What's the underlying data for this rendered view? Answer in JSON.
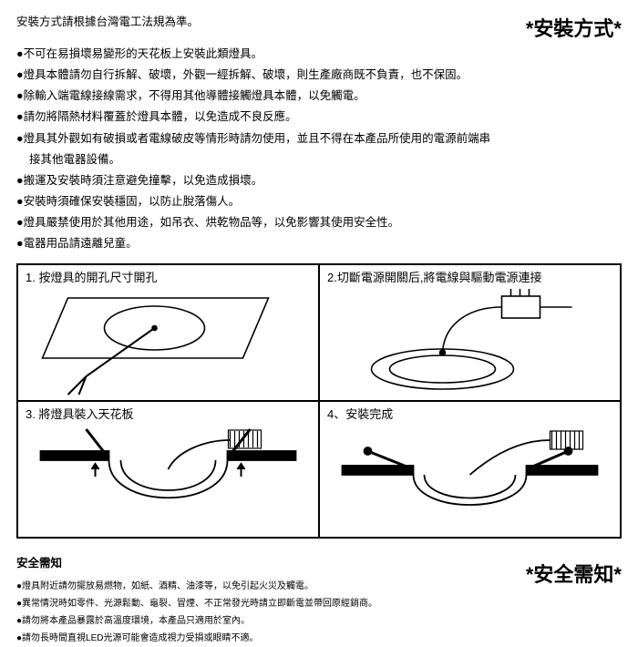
{
  "colors": {
    "text": "#000000",
    "bg": "#ffffff",
    "line": "#000000"
  },
  "header": {
    "intro": "安裝方式請根據台灣電工法規為準。",
    "title": "*安裝方式*"
  },
  "install_bullets": [
    "不可在易損壞易變形的天花板上安裝此類燈具。",
    "燈具本體請勿自行拆解、破壞，外觀一經拆解、破壞，則生產廠商既不負責，也不保固。",
    "除輸入端電線接線需求，不得用其他導體接觸燈具本體，以免觸電。",
    "請勿將隔熱材料覆蓋於燈具本體，以免造成不良反應。",
    "燈具其外觀如有破損或者電線破皮等情形時請勿使用，並且不得在本產品所使用的電源前端串",
    "接其他電器設備。",
    "搬運及安裝時須注意避免撞擊，以免造成損壞。",
    "安裝時須確保安裝穩固，以防止脫落傷人。",
    "燈具嚴禁使用於其他用途，如吊衣、烘乾物品等，以免影響其使用安全性。",
    "電器用品請遠離兒童。"
  ],
  "bullet_indent_indices": [
    5
  ],
  "diagram": {
    "cells": [
      {
        "caption": "1. 按燈具的開孔尺寸開孔"
      },
      {
        "caption": "2.切斷電源開關后,將電線與驅動電源連接"
      },
      {
        "caption": "3. 將燈具裝入天花板"
      },
      {
        "caption": "4、安裝完成"
      }
    ],
    "stroke_width": 1.6
  },
  "safety": {
    "heading": "安全需知",
    "title": "*安全需知*",
    "items": [
      "燈具附近請勿擺放易燃物，如紙、酒精、油漆等，以免引起火災及觸電。",
      "異常情況時如零件、光源鬆動、龜裂、冒煙、不正常發光時請立即斷電並帶回原經銷商。",
      "請勿將本產品暴露於高溫度環境，本產品只適用於室內。",
      "請勿長時間直視LED光源可能會造成視力受損或眼睛不適。"
    ]
  }
}
